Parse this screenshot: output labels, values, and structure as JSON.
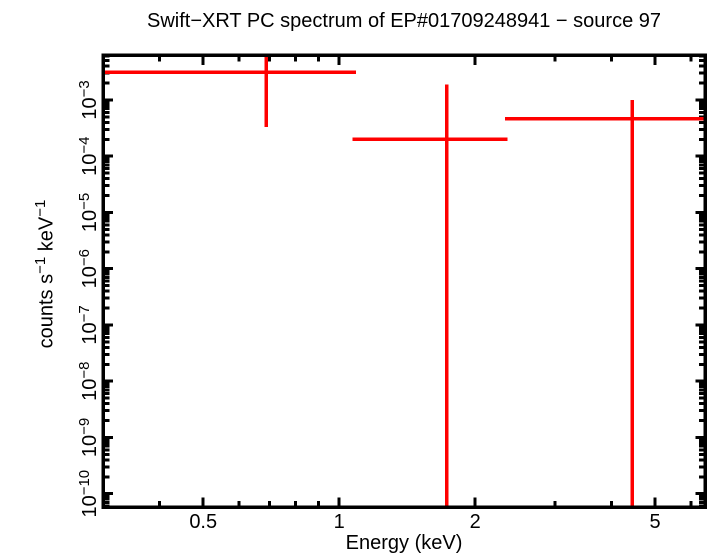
{
  "chart_data": {
    "type": "scatter",
    "title": "Swift−XRT PC spectrum of EP#01709248941 − source 97",
    "xlabel": "Energy (keV)",
    "ylabel": "counts s⁻¹ keV⁻¹",
    "ylabel_parts": [
      "counts s",
      "−1",
      " keV",
      "−1"
    ],
    "x_scale": "log",
    "y_scale": "log",
    "xlim": [
      0.3,
      6.45
    ],
    "ylim": [
      5.8e-11,
      0.0063
    ],
    "x_major_ticks": [
      0.5,
      1,
      2,
      5
    ],
    "x_major_tick_labels": [
      "0.5",
      "1",
      "2",
      "5"
    ],
    "x_minor_ticks": [
      0.4,
      0.6,
      0.7,
      0.8,
      0.9,
      3,
      4,
      6
    ],
    "y_major_tick_exponents": [
      -3,
      -4,
      -5,
      -6,
      -7,
      -8,
      -9,
      -10
    ],
    "y_major_tick_labels": [
      "10⁻³",
      "10⁻⁴",
      "10⁻⁵",
      "10⁻⁶",
      "10⁻⁷",
      "10⁻⁸",
      "10⁻⁹",
      "10⁻¹⁰"
    ],
    "grid": false,
    "legend": null,
    "colors": {
      "data": "#ff0000",
      "axes": "#000000",
      "background": "#ffffff"
    },
    "points": [
      {
        "x": 0.69,
        "x_lo": 0.3,
        "x_hi": 1.09,
        "y": 0.0031,
        "y_hi": 0.0063,
        "y_lo": 0.00033,
        "note": "upper y error clipped at top frame; lower x bound at left plot edge"
      },
      {
        "x": 1.73,
        "x_lo": 1.07,
        "x_hi": 2.36,
        "y": 0.0002,
        "y_hi": 0.0019,
        "y_lo": 0,
        "note": "lower y error extends to plot bottom (consistent with zero)"
      },
      {
        "x": 4.45,
        "x_lo": 2.33,
        "x_hi": 6.45,
        "y": 0.00046,
        "y_hi": 0.001,
        "y_lo": 0,
        "note": "lower y error extends to plot bottom; upper x bound clipped at right plot edge"
      }
    ]
  }
}
